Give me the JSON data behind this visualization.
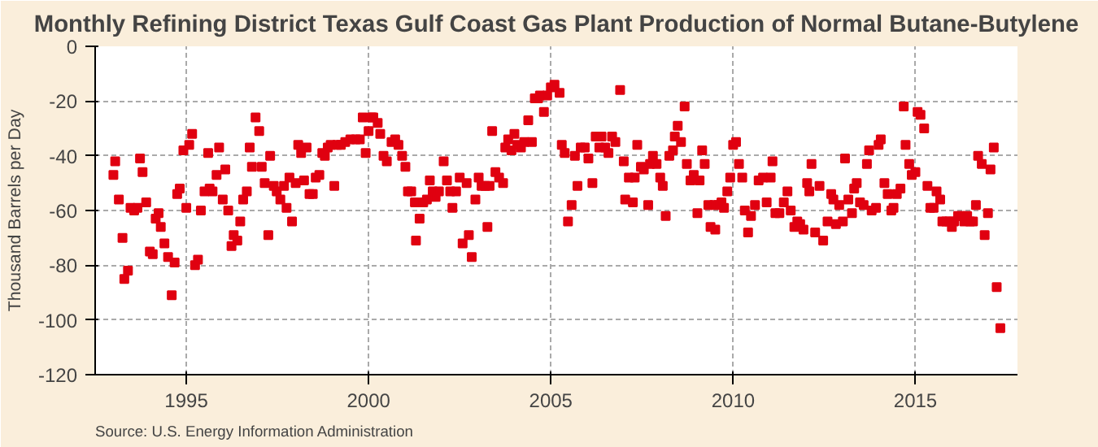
{
  "chart_data": {
    "type": "scatter",
    "title": "Monthly Refining District Texas Gulf Coast Gas Plant Production of Normal Butane-Butylene",
    "ylabel": "Thousand Barrels per Day",
    "annotations": [
      "Source: U.S. Energy Information Administration"
    ],
    "x": [
      1993.0,
      1993.05,
      1993.15,
      1993.25,
      1993.3,
      1993.4,
      1993.47,
      1993.57,
      1993.66,
      1993.73,
      1993.8,
      1993.9,
      1994.0,
      1994.08,
      1994.16,
      1994.24,
      1994.3,
      1994.4,
      1994.5,
      1994.6,
      1994.68,
      1994.75,
      1994.82,
      1994.92,
      1995.0,
      1995.08,
      1995.16,
      1995.24,
      1995.32,
      1995.4,
      1995.5,
      1995.6,
      1995.64,
      1995.72,
      1995.83,
      1995.9,
      1996.0,
      1996.07,
      1996.15,
      1996.24,
      1996.3,
      1996.4,
      1996.48,
      1996.56,
      1996.66,
      1996.74,
      1996.8,
      1996.9,
      1997.0,
      1997.07,
      1997.15,
      1997.25,
      1997.3,
      1997.4,
      1997.48,
      1997.58,
      1997.68,
      1997.75,
      1997.83,
      1997.9,
      1998.0,
      1998.07,
      1998.15,
      1998.23,
      1998.3,
      1998.38,
      1998.47,
      1998.55,
      1998.65,
      1998.73,
      1998.8,
      1998.88,
      1998.96,
      1999.06,
      1999.14,
      1999.24,
      1999.36,
      1999.5,
      1999.65,
      1999.76,
      1999.84,
      1999.92,
      2000.0,
      2000.08,
      2000.13,
      2000.25,
      2000.32,
      2000.41,
      2000.5,
      2000.63,
      2000.73,
      2000.82,
      2000.92,
      2001.01,
      2001.08,
      2001.17,
      2001.27,
      2001.3,
      2001.4,
      2001.5,
      2001.6,
      2001.68,
      2001.76,
      2001.84,
      2001.93,
      2002.06,
      2002.15,
      2002.24,
      2002.3,
      2002.4,
      2002.5,
      2002.58,
      2002.69,
      2002.75,
      2002.83,
      2002.93,
      2003.02,
      2003.1,
      2003.2,
      2003.26,
      2003.32,
      2003.39,
      2003.48,
      2003.58,
      2003.69,
      2003.75,
      2003.83,
      2003.92,
      2004.0,
      2004.08,
      2004.18,
      2004.27,
      2004.38,
      2004.48,
      2004.56,
      2004.65,
      2004.7,
      2004.81,
      2004.9,
      2005.0,
      2005.1,
      2005.24,
      2005.3,
      2005.38,
      2005.47,
      2005.57,
      2005.66,
      2005.73,
      2005.82,
      2005.93,
      2006.03,
      2006.14,
      2006.23,
      2006.33,
      2006.39,
      2006.49,
      2006.58,
      2006.68,
      2006.77,
      2006.9,
      2007.0,
      2007.04,
      2007.14,
      2007.25,
      2007.3,
      2007.37,
      2007.47,
      2007.55,
      2007.67,
      2007.72,
      2007.8,
      2007.9,
      2008.0,
      2008.07,
      2008.15,
      2008.25,
      2008.35,
      2008.4,
      2008.48,
      2008.57,
      2008.67,
      2008.73,
      2008.83,
      2008.92,
      2009.02,
      2009.08,
      2009.15,
      2009.22,
      2009.32,
      2009.38,
      2009.48,
      2009.51,
      2009.59,
      2009.68,
      2009.75,
      2009.84,
      2009.92,
      2010.0,
      2010.08,
      2010.16,
      2010.25,
      2010.32,
      2010.41,
      2010.49,
      2010.6,
      2010.7,
      2010.82,
      2010.92,
      2011.03,
      2011.08,
      2011.16,
      2011.27,
      2011.39,
      2011.49,
      2011.58,
      2011.68,
      2011.76,
      2011.84,
      2011.93,
      2012.03,
      2012.09,
      2012.15,
      2012.25,
      2012.37,
      2012.47,
      2012.59,
      2012.69,
      2012.75,
      2012.82,
      2012.91,
      2013.01,
      2013.07,
      2013.16,
      2013.26,
      2013.32,
      2013.39,
      2013.48,
      2013.58,
      2013.67,
      2013.73,
      2013.8,
      2013.92,
      2013.99,
      2014.05,
      2014.15,
      2014.24,
      2014.34,
      2014.4,
      2014.49,
      2014.59,
      2014.68,
      2014.73,
      2014.83,
      2014.9,
      2015.0,
      2015.06,
      2015.14,
      2015.24,
      2015.33,
      2015.41,
      2015.5,
      2015.58,
      2015.68,
      2015.74,
      2015.84,
      2015.93,
      2016.0,
      2016.06,
      2016.17,
      2016.25,
      2016.34,
      2016.42,
      2016.5,
      2016.58,
      2016.66,
      2016.72,
      2016.82,
      2016.9,
      2016.99,
      2017.06,
      2017.15,
      2017.23,
      2017.33
    ],
    "series": [
      {
        "color": "#e00010",
        "values": [
          -47,
          -42,
          -56,
          -70,
          -85,
          -82,
          -59,
          -60,
          -59,
          -41,
          -46,
          -57,
          -75,
          -76,
          -63,
          -61,
          -66,
          -72,
          -77,
          -91,
          -79,
          -54,
          -52,
          -38,
          -59,
          -36,
          -32,
          -80,
          -78,
          -60,
          -53,
          -39,
          -52,
          -53,
          -47,
          -37,
          -56,
          -45,
          -60,
          -73,
          -69,
          -71,
          -64,
          -56,
          -53,
          -37,
          -44,
          -26,
          -31,
          -44,
          -50,
          -69,
          -40,
          -51,
          -53,
          -56,
          -51,
          -59,
          -48,
          -64,
          -50,
          -36,
          -39,
          -49,
          -37,
          -54,
          -54,
          -48,
          -47,
          -39,
          -40,
          -37,
          -36,
          -51,
          -36,
          -36,
          -35,
          -34,
          -34,
          -34,
          -26,
          -39,
          -31,
          -26,
          -26,
          -28,
          -32,
          -40,
          -42,
          -35,
          -34,
          -36,
          -40,
          -44,
          -53,
          -53,
          -57,
          -71,
          -63,
          -57,
          -56,
          -49,
          -53,
          -55,
          -53,
          -42,
          -49,
          -53,
          -59,
          -53,
          -48,
          -72,
          -50,
          -69,
          -77,
          -56,
          -48,
          -51,
          -51,
          -66,
          -51,
          -31,
          -46,
          -48,
          -50,
          -37,
          -34,
          -38,
          -32,
          -36,
          -37,
          -35,
          -27,
          -35,
          -19,
          -19,
          -18,
          -24,
          -18,
          -15,
          -14,
          -17,
          -36,
          -39,
          -64,
          -58,
          -40,
          -51,
          -37,
          -37,
          -41,
          -50,
          -33,
          -37,
          -33,
          -37,
          -39,
          -33,
          -35,
          -16,
          -42,
          -56,
          -48,
          -57,
          -48,
          -36,
          -44,
          -45,
          -58,
          -43,
          -40,
          -43,
          -48,
          -51,
          -62,
          -40,
          -38,
          -33,
          -29,
          -35,
          -22,
          -43,
          -49,
          -47,
          -61,
          -49,
          -38,
          -43,
          -58,
          -66,
          -58,
          -67,
          -58,
          -57,
          -59,
          -53,
          -48,
          -36,
          -35,
          -43,
          -48,
          -60,
          -68,
          -62,
          -58,
          -49,
          -48,
          -57,
          -48,
          -42,
          -61,
          -61,
          -57,
          -53,
          -60,
          -66,
          -64,
          -65,
          -67,
          -50,
          -53,
          -43,
          -68,
          -51,
          -71,
          -64,
          -54,
          -56,
          -65,
          -58,
          -64,
          -41,
          -56,
          -61,
          -52,
          -50,
          -57,
          -58,
          -43,
          -38,
          -60,
          -59,
          -36,
          -34,
          -50,
          -54,
          -60,
          -59,
          -54,
          -52,
          -22,
          -36,
          -43,
          -47,
          -46,
          -24,
          -25,
          -30,
          -51,
          -59,
          -59,
          -53,
          -56,
          -64,
          -64,
          -64,
          -66,
          -64,
          -62,
          -62,
          -64,
          -62,
          -64,
          -64,
          -58,
          -40,
          -43,
          -69,
          -61,
          -45,
          -37,
          -88,
          -103
        ]
      }
    ],
    "xlim": [
      1992.5,
      2017.8
    ],
    "ylim": [
      -120,
      0
    ],
    "xticks": [
      1995,
      2000,
      2005,
      2010,
      2015
    ],
    "yticks": [
      -120,
      -100,
      -80,
      -60,
      -40,
      -20,
      0
    ],
    "grid": true,
    "marker": "square"
  }
}
